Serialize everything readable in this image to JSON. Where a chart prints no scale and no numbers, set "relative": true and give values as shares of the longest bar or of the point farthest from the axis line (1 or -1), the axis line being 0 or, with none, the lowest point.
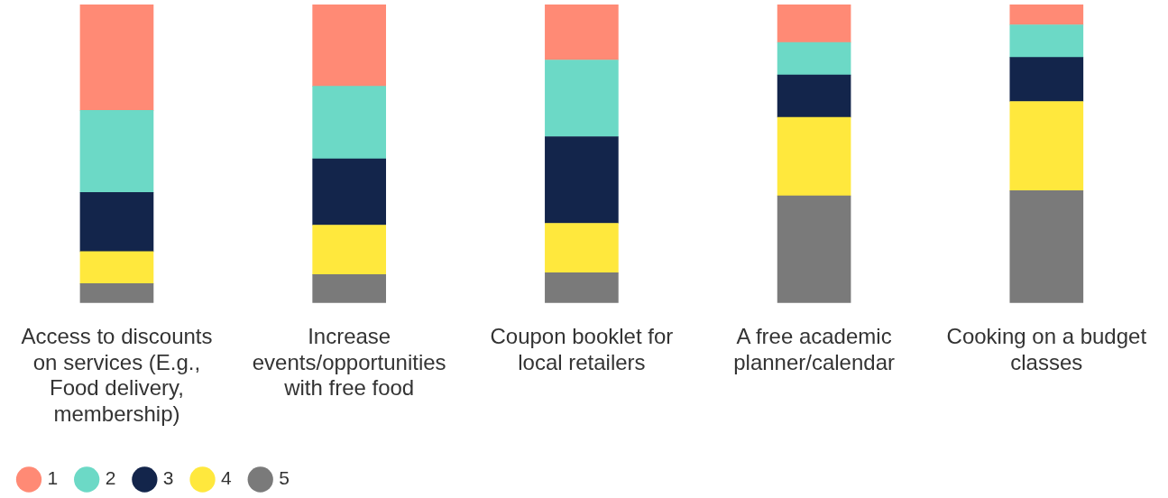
{
  "chart_data": {
    "type": "bar",
    "stacked": true,
    "relative": true,
    "legend": "bottom left",
    "grid": false,
    "categories": [
      "Access to discounts on services (E.g., Food delivery, membership)",
      "Increase events/opportunities with free food",
      "Coupon booklet for local retailers",
      "A free academic planner/calendar",
      "Cooking on a budget classes"
    ],
    "series": [
      {
        "name": "5",
        "color": "#7a7a7a",
        "values": [
          0.065,
          0.095,
          0.101,
          0.359,
          0.376
        ]
      },
      {
        "name": "4",
        "color": "#ffe83d",
        "values": [
          0.107,
          0.166,
          0.166,
          0.263,
          0.299
        ]
      },
      {
        "name": "3",
        "color": "#13254b",
        "values": [
          0.198,
          0.222,
          0.29,
          0.142,
          0.148
        ]
      },
      {
        "name": "2",
        "color": "#6cd9c6",
        "values": [
          0.275,
          0.243,
          0.257,
          0.109,
          0.109
        ]
      },
      {
        "name": "1",
        "color": "#ff8a75",
        "values": [
          0.355,
          0.274,
          0.186,
          0.127,
          0.068
        ]
      }
    ]
  }
}
